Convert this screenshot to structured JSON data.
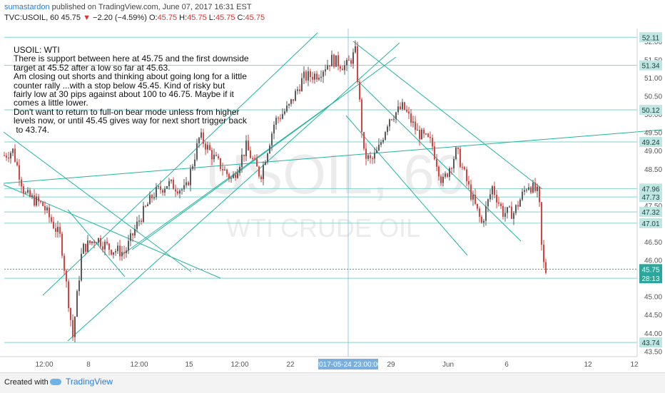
{
  "header": {
    "author": "sumastardon",
    "published_text": "published on TradingView.com, June 07, 2017 16:31 EST",
    "symbol": "TVC:USOIL, 60",
    "last": "45.75",
    "arrow": "▼",
    "change": "−2.20 (−4.59%)",
    "o_label": "O:",
    "o_val": "45.75",
    "h_label": "H:",
    "h_val": "45.75",
    "l_label": "L:",
    "l_val": "45.75",
    "c_label": "C:",
    "c_val": "45.75"
  },
  "note": {
    "title": "USOIL: WTI",
    "lines": [
      "There is support between here at 45.75 and the first downside",
      "target at 45.52 after a low so far at 45.63.",
      "Am closing out shorts and thinking about going long for a little",
      "counter rally ...with a stop below 45.45. Kind of risky but",
      "fairly low at 30 pips against about 100 to 46.75. Maybe if it",
      "comes a little lower.",
      "Don't want to return to full-on bear mode unless from higher",
      "levels now, or until 45.45 gives way for next short trigger back",
      " to 43.74."
    ]
  },
  "watermark": {
    "symbol": "USOIL, 60",
    "name": "WTI CRUDE OIL"
  },
  "footer": {
    "created_with": "Created with",
    "brand": "TradingView"
  },
  "colors": {
    "up": "#5a5a5a",
    "down": "#d64541",
    "channel": "#22b3a0",
    "level": "#7fd3cd",
    "accent": "#2e7bcf"
  },
  "chart_data": {
    "type": "candlestick",
    "symbol": "TVC:USOIL",
    "interval": "60",
    "y_axis": {
      "ticks": [
        "52.00",
        "51.50",
        "51.00",
        "50.50",
        "50.00",
        "49.50",
        "49.00",
        "48.50",
        "48.00",
        "47.50",
        "47.00",
        "46.50",
        "46.00",
        "45.50",
        "45.00",
        "44.50",
        "44.00",
        "43.50"
      ],
      "range": [
        43.35,
        52.35
      ]
    },
    "x_axis": {
      "ticks": [
        "12:00",
        "8",
        "12:00",
        "15",
        "12:00",
        "22",
        "29",
        "Jun",
        "6",
        "12",
        "12"
      ],
      "crosshair_label": "2017-05-24 23:00:00"
    },
    "horizontal_levels": [
      {
        "value": 52.11,
        "label": "52.11"
      },
      {
        "value": 51.34,
        "label": "51.34"
      },
      {
        "value": 50.12,
        "label": "50.12"
      },
      {
        "value": 49.24,
        "label": "49.24"
      },
      {
        "value": 47.96,
        "label": "47.96"
      },
      {
        "value": 47.73,
        "label": "47.73"
      },
      {
        "value": 47.32,
        "label": "47.32"
      },
      {
        "value": 47.01,
        "label": "47.01"
      },
      {
        "value": 45.75,
        "label": "45.75",
        "current": true
      },
      {
        "value": 45.5,
        "label": "28:13",
        "countdown": true
      },
      {
        "value": 43.74,
        "label": "43.74"
      }
    ],
    "path": [
      [
        0,
        48.8
      ],
      [
        18,
        49.0
      ],
      [
        35,
        47.8
      ],
      [
        60,
        47.5
      ],
      [
        85,
        46.6
      ],
      [
        102,
        43.9
      ],
      [
        115,
        46.3
      ],
      [
        135,
        46.6
      ],
      [
        155,
        46.3
      ],
      [
        175,
        46.2
      ],
      [
        195,
        47.1
      ],
      [
        215,
        47.8
      ],
      [
        235,
        48.1
      ],
      [
        260,
        47.9
      ],
      [
        280,
        49.4
      ],
      [
        300,
        48.8
      ],
      [
        325,
        48.2
      ],
      [
        345,
        49.1
      ],
      [
        365,
        48.3
      ],
      [
        385,
        49.8
      ],
      [
        405,
        50.2
      ],
      [
        425,
        51.0
      ],
      [
        445,
        51.1
      ],
      [
        465,
        51.5
      ],
      [
        485,
        51.3
      ],
      [
        498,
        51.7
      ],
      [
        510,
        48.9
      ],
      [
        520,
        48.7
      ],
      [
        530,
        49.0
      ],
      [
        545,
        49.9
      ],
      [
        565,
        50.2
      ],
      [
        585,
        49.5
      ],
      [
        605,
        49.2
      ],
      [
        620,
        48.1
      ],
      [
        640,
        49.0
      ],
      [
        660,
        47.8
      ],
      [
        675,
        47.0
      ],
      [
        690,
        48.0
      ],
      [
        705,
        47.3
      ],
      [
        720,
        47.3
      ],
      [
        740,
        48.1
      ],
      [
        755,
        47.8
      ],
      [
        760,
        46.0
      ],
      [
        765,
        45.7
      ]
    ]
  }
}
